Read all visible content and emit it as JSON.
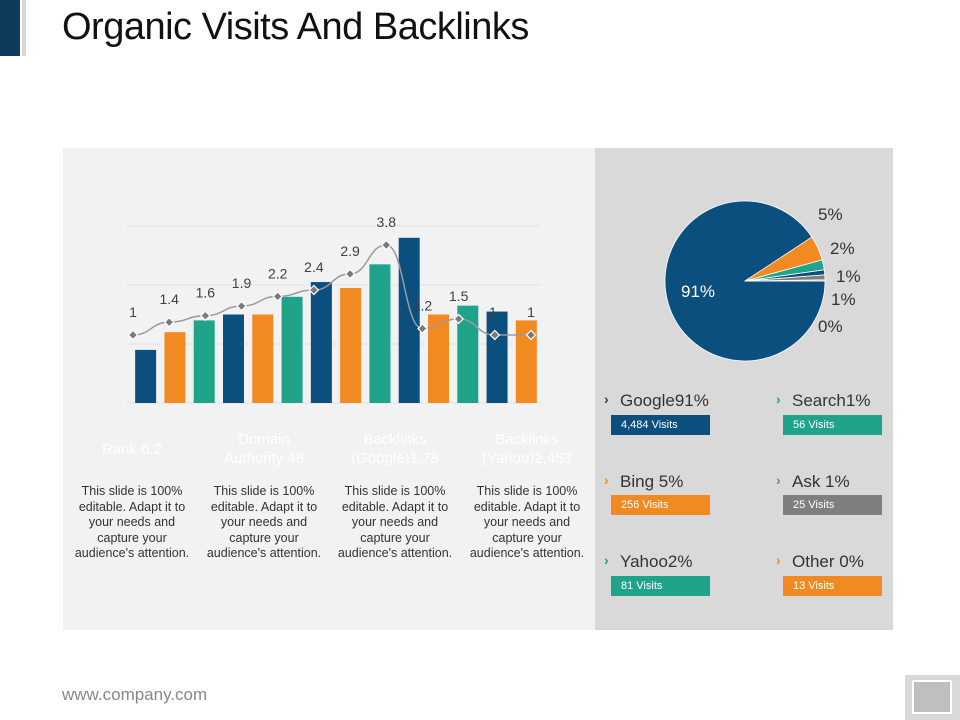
{
  "title": "Organic Visits And Backlinks",
  "footer": "www.company.com",
  "colors": {
    "navy": "#0b4f7e",
    "orange": "#f18a21",
    "teal": "#1fa48a",
    "gray": "#7f7f7f",
    "accent": "#0e3a5c"
  },
  "chart_data": [
    {
      "type": "bar",
      "values": [
        1.8,
        2.4,
        2.8,
        3.0,
        3.0,
        3.6,
        4.1,
        3.9,
        4.7,
        5.6,
        3.0,
        3.3,
        3.1,
        2.8
      ],
      "bar_colors": [
        "navy",
        "orange",
        "teal",
        "navy",
        "orange",
        "teal",
        "navy",
        "orange",
        "teal",
        "navy",
        "orange",
        "teal",
        "navy",
        "orange"
      ],
      "line_values": [
        1,
        1.4,
        1.6,
        1.9,
        2.2,
        2.4,
        2.9,
        3.8,
        1.2,
        1.5,
        1,
        1
      ],
      "line_labels": [
        "1",
        "1.4",
        "1.6",
        "1.9",
        "2.2",
        "2.4",
        "2.9",
        "3.8",
        "1.2",
        "1.5",
        "1.",
        "1"
      ],
      "ylim": [
        0,
        6
      ],
      "grid": true
    },
    {
      "type": "pie",
      "slices": [
        {
          "label": "91%",
          "value": 91,
          "color": "navy"
        },
        {
          "label": "5%",
          "value": 5,
          "color": "orange"
        },
        {
          "label": "2%",
          "value": 2,
          "color": "teal"
        },
        {
          "label": "1%",
          "value": 1,
          "color": "navy"
        },
        {
          "label": "1%",
          "value": 1,
          "color": "gray"
        },
        {
          "label": "0%",
          "value": 0,
          "color": "orange"
        }
      ]
    }
  ],
  "metrics": [
    {
      "label": "Rank 6.2",
      "color": "navy"
    },
    {
      "label": "Domain Authority 48",
      "color": "orange"
    },
    {
      "label": "Backlinks (Google)1,78",
      "color": "teal"
    },
    {
      "label": "Backlinks (Yahoo)2,453",
      "color": "navy"
    }
  ],
  "description": "This slide is 100% editable. Adapt it to your needs and capture your audience's attention.",
  "legend": [
    {
      "name": "Google91%",
      "visits": "4,484 Visits",
      "color": "navy"
    },
    {
      "name": "Search1%",
      "visits": "56 Visits",
      "color": "teal"
    },
    {
      "name": "Bing 5%",
      "visits": "256 Visits",
      "color": "orange"
    },
    {
      "name": "Ask 1%",
      "visits": "25 Visits",
      "color": "gray"
    },
    {
      "name": "Yahoo2%",
      "visits": "81 Visits",
      "color": "teal"
    },
    {
      "name": "Other 0%",
      "visits": "13 Visits",
      "color": "orange"
    }
  ]
}
